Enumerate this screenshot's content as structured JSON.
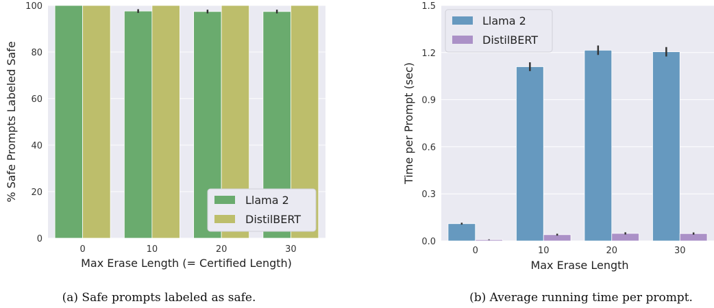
{
  "chart_data": [
    {
      "type": "bar",
      "caption": "(a) Safe prompts labeled as safe.",
      "categories": [
        "0",
        "10",
        "20",
        "30"
      ],
      "series": [
        {
          "name": "Llama 2",
          "color": "#6aab6e",
          "values": [
            100,
            97.6,
            97.4,
            97.4
          ],
          "errors": [
            0,
            0.8,
            0.8,
            0.8
          ]
        },
        {
          "name": "DistilBERT",
          "color": "#bdbe6b",
          "values": [
            100,
            100,
            100,
            100
          ],
          "errors": [
            0,
            0,
            0,
            0
          ]
        }
      ],
      "xlabel": "Max Erase Length (= Certified Length)",
      "ylabel": "% Safe Prompts Labeled Safe",
      "ylim": [
        0,
        100
      ],
      "yticks": [
        "0",
        "20",
        "40",
        "60",
        "80",
        "100"
      ],
      "legend_position": "bottom-right",
      "background": "#eaeaf2",
      "grid": true
    },
    {
      "type": "bar",
      "caption": "(b) Average running time per prompt.",
      "categories": [
        "0",
        "10",
        "20",
        "30"
      ],
      "series": [
        {
          "name": "Llama 2",
          "color": "#6699bf",
          "values": [
            0.11,
            1.11,
            1.215,
            1.205
          ],
          "errors": [
            0.006,
            0.028,
            0.03,
            0.03
          ]
        },
        {
          "name": "DistilBERT",
          "color": "#ab91c7",
          "values": [
            0.008,
            0.04,
            0.048,
            0.047
          ],
          "errors": [
            0.002,
            0.006,
            0.007,
            0.007
          ]
        }
      ],
      "xlabel": "Max Erase Length",
      "ylabel": "Time per Prompt (sec)",
      "ylim": [
        0,
        1.5
      ],
      "yticks": [
        "0.0",
        "0.3",
        "0.6",
        "0.9",
        "1.2",
        "1.5"
      ],
      "legend_position": "top-left",
      "background": "#eaeaf2",
      "grid": true
    }
  ]
}
